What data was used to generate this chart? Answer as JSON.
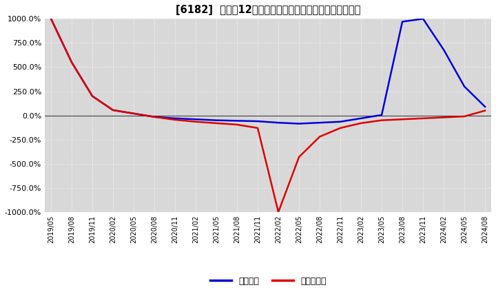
{
  "title": "[6182]  利益の12か月移動合計の対前年同期増減率の推移",
  "legend": [
    "経常利益",
    "当期純利益"
  ],
  "line_colors": [
    "#0000dd",
    "#dd0000"
  ],
  "background_color": "#ffffff",
  "plot_bg_color": "#d8d8d8",
  "grid_color": "#ffffff",
  "zero_line_color": "#404040",
  "ylim": [
    -1000,
    1000
  ],
  "yticks": [
    -1000,
    -750,
    -500,
    -250,
    0,
    250,
    500,
    750,
    1000
  ],
  "x_labels": [
    "2019/05",
    "2019/08",
    "2019/11",
    "2020/02",
    "2020/05",
    "2020/08",
    "2020/11",
    "2021/02",
    "2021/05",
    "2021/08",
    "2021/11",
    "2022/02",
    "2022/05",
    "2022/08",
    "2022/11",
    "2023/02",
    "2023/05",
    "2023/08",
    "2023/11",
    "2024/02",
    "2024/05",
    "2024/08"
  ],
  "operating_profit": [
    1000,
    550,
    200,
    55,
    20,
    -15,
    -30,
    -40,
    -50,
    -55,
    -60,
    -75,
    -85,
    -75,
    -65,
    -30,
    5,
    970,
    1000,
    680,
    300,
    90
  ],
  "net_profit": [
    1000,
    550,
    200,
    55,
    20,
    -15,
    -45,
    -65,
    -80,
    -95,
    -130,
    -1000,
    -430,
    -220,
    -130,
    -80,
    -50,
    -40,
    -30,
    -20,
    -10,
    50
  ]
}
